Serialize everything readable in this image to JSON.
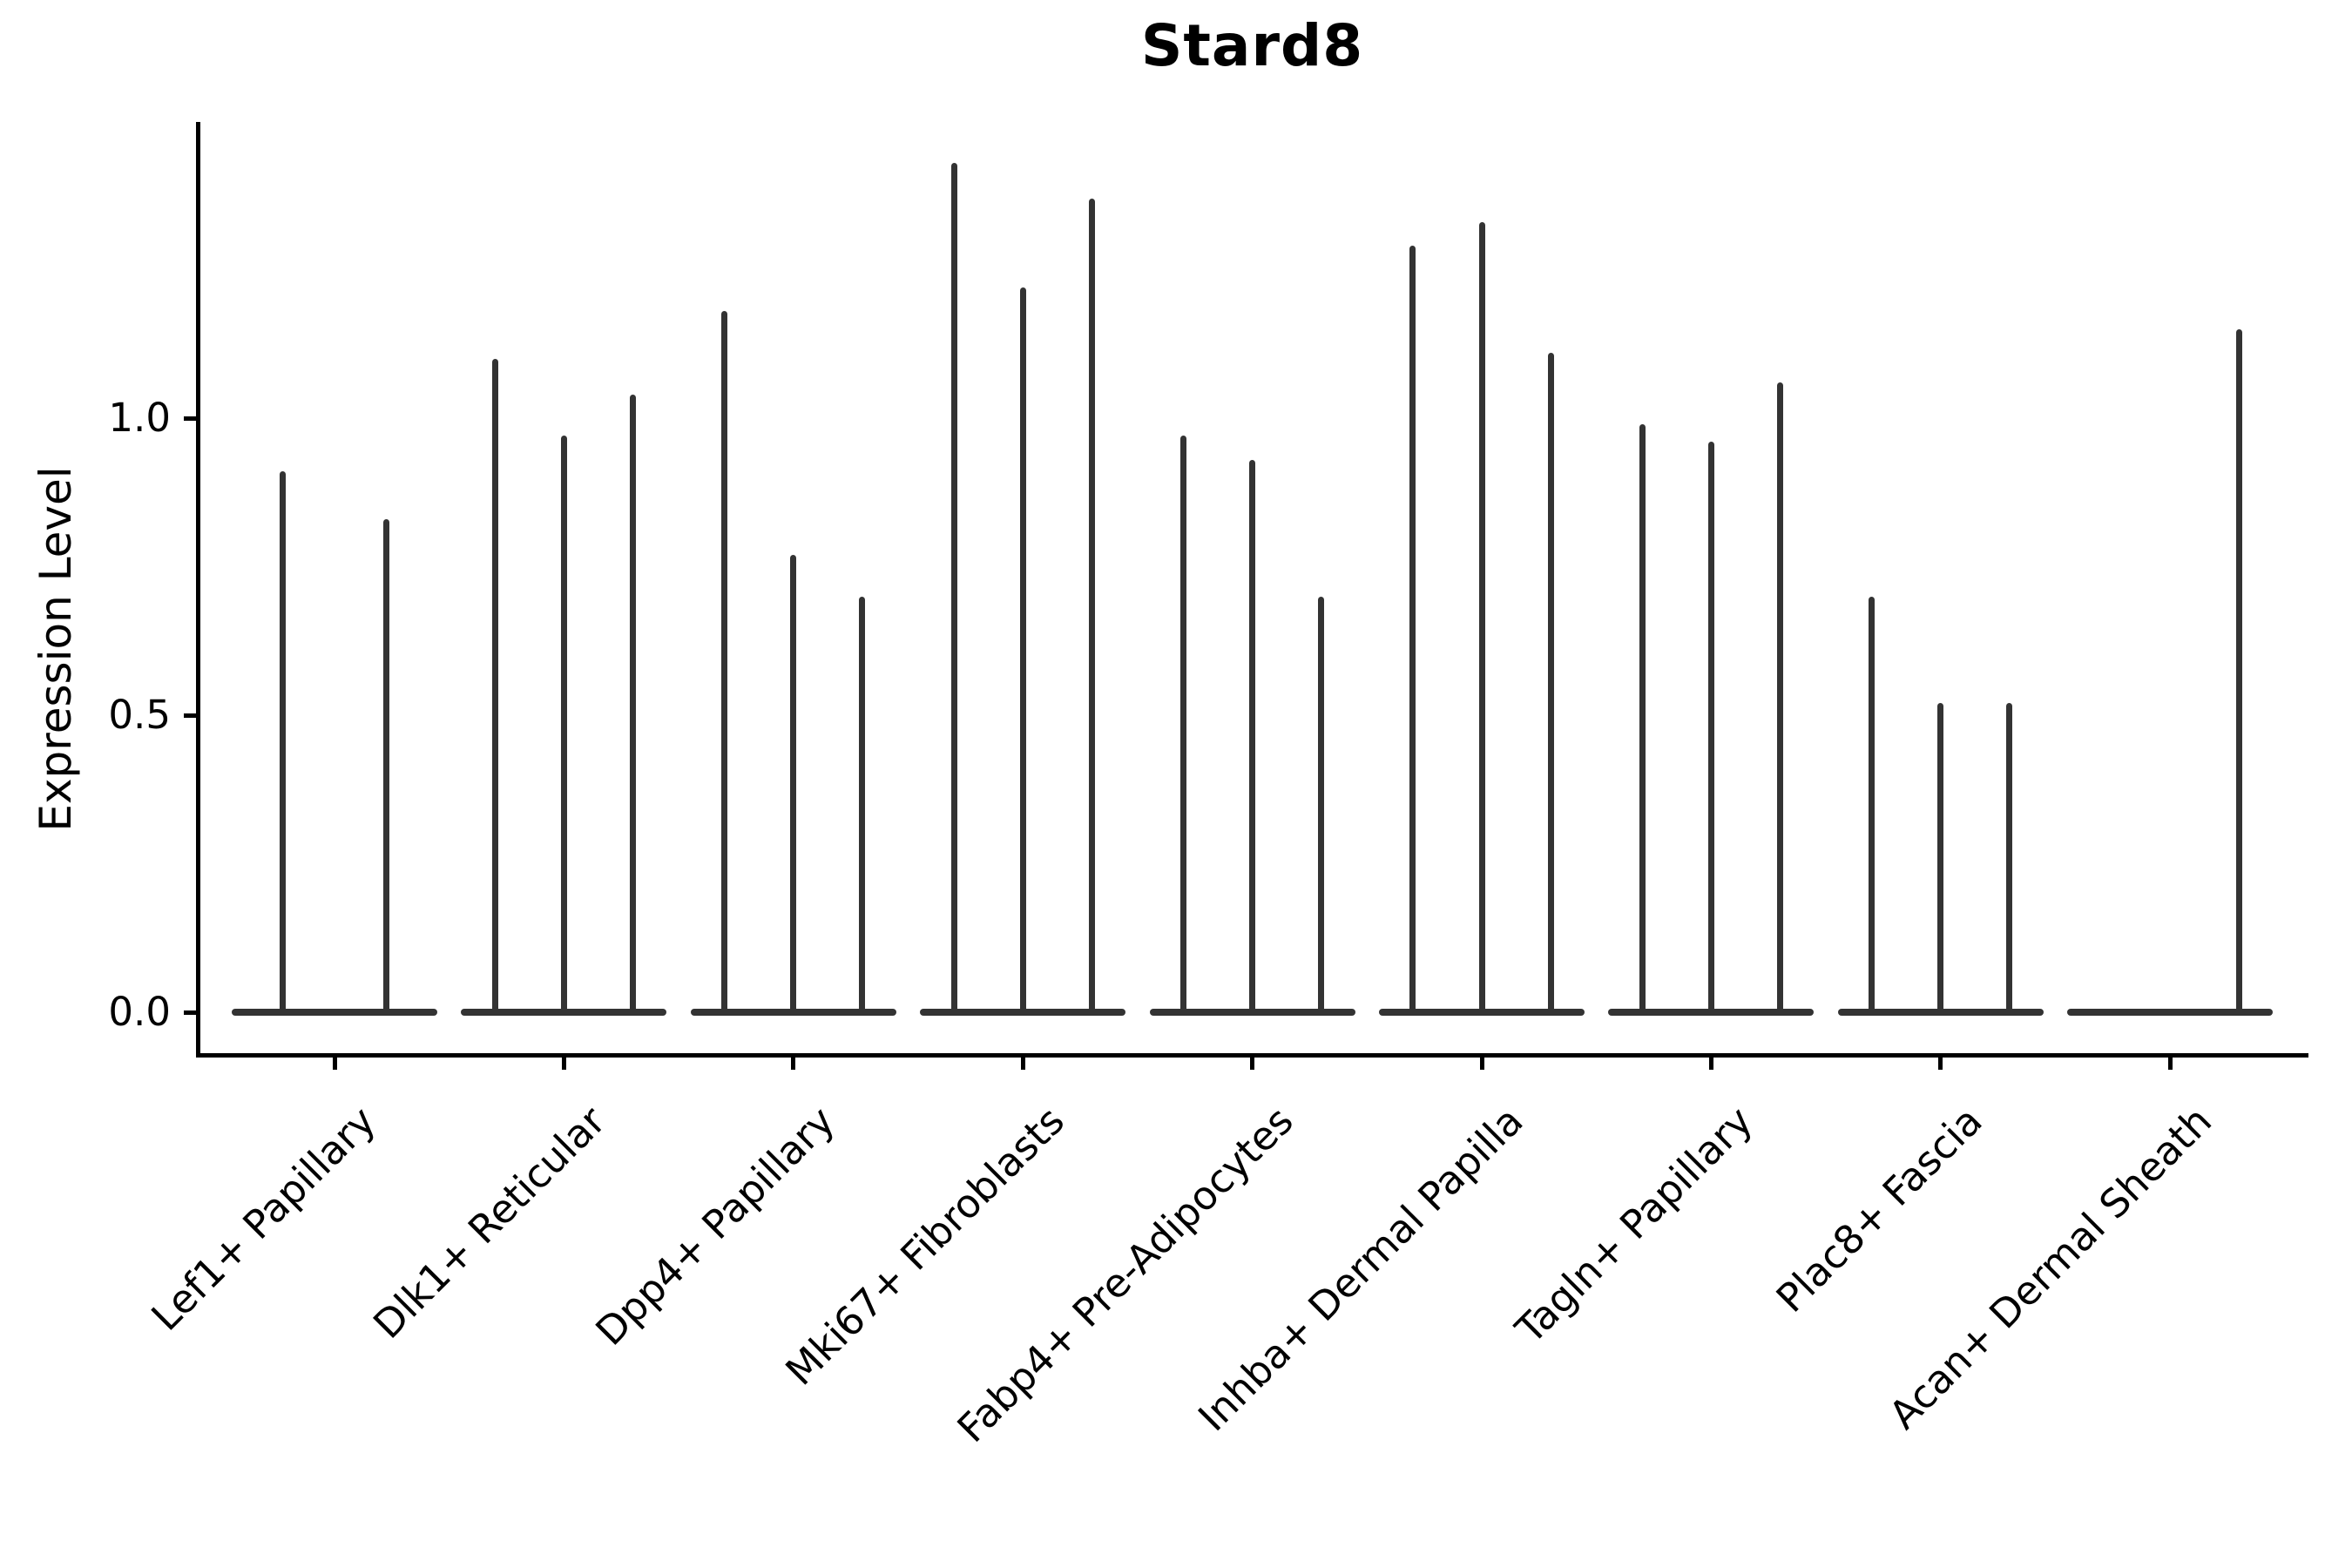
{
  "chart_data": {
    "type": "violin",
    "title": "Stard8",
    "xlabel": "",
    "ylabel": "Expression Level",
    "ylim": [
      0,
      1.5
    ],
    "yticks": [
      0.0,
      0.5,
      1.0
    ],
    "ytick_labels": [
      "0.0",
      "0.5",
      "1.0"
    ],
    "grid": false,
    "legend_position": "none",
    "style_note": "Collapsed needle-thin violins: each violin is a flat body at expression 0 with a thin vertical spike up to its maximum expression value",
    "categories": [
      "Lef1+ Papillary",
      "Dlk1+ Reticular",
      "Dpp4+ Papillary",
      "Mki67+ Fibroblasts",
      "Fabp4+ Pre-Adipocytes",
      "Inhba+ Dermal Papilla",
      "Tagln+ Papillary",
      "Plac8+ Fascia",
      "Acan+ Dermal Sheath"
    ],
    "groups": [
      {
        "label": "Lef1+ Papillary",
        "violins": [
          {
            "offset": -0.225,
            "max": 0.91
          },
          {
            "offset": 0.225,
            "max": 0.83
          }
        ]
      },
      {
        "label": "Dlk1+ Reticular",
        "violins": [
          {
            "offset": -0.3,
            "max": 1.1
          },
          {
            "offset": 0,
            "max": 0.97
          },
          {
            "offset": 0.3,
            "max": 1.04
          }
        ]
      },
      {
        "label": "Dpp4+ Papillary",
        "violins": [
          {
            "offset": -0.3,
            "max": 1.18
          },
          {
            "offset": 0,
            "max": 0.77
          },
          {
            "offset": 0.3,
            "max": 0.7
          }
        ]
      },
      {
        "label": "Mki67+ Fibroblasts",
        "violins": [
          {
            "offset": -0.3,
            "max": 1.43
          },
          {
            "offset": 0,
            "max": 1.22
          },
          {
            "offset": 0.3,
            "max": 1.37
          }
        ]
      },
      {
        "label": "Fabp4+ Pre-Adipocytes",
        "violins": [
          {
            "offset": -0.3,
            "max": 0.97
          },
          {
            "offset": 0,
            "max": 0.93
          },
          {
            "offset": 0.3,
            "max": 0.7
          }
        ]
      },
      {
        "label": "Inhba+ Dermal Papilla",
        "violins": [
          {
            "offset": -0.3,
            "max": 1.29
          },
          {
            "offset": 0,
            "max": 1.33
          },
          {
            "offset": 0.3,
            "max": 1.11
          }
        ]
      },
      {
        "label": "Tagln+ Papillary",
        "violins": [
          {
            "offset": -0.3,
            "max": 0.99
          },
          {
            "offset": 0,
            "max": 0.96
          },
          {
            "offset": 0.3,
            "max": 1.06
          }
        ]
      },
      {
        "label": "Plac8+ Fascia",
        "violins": [
          {
            "offset": -0.3,
            "max": 0.7
          },
          {
            "offset": 0,
            "max": 0.52
          },
          {
            "offset": 0.3,
            "max": 0.52
          }
        ]
      },
      {
        "label": "Acan+ Dermal Sheath",
        "violins": [
          {
            "offset": -0.3,
            "max": 0.0
          },
          {
            "offset": 0,
            "max": 0.0
          },
          {
            "offset": 0.3,
            "max": 1.15
          }
        ]
      }
    ],
    "colors": {
      "violin": "#333333",
      "axis": "#000000",
      "text": "#000000",
      "background": "#ffffff"
    }
  }
}
